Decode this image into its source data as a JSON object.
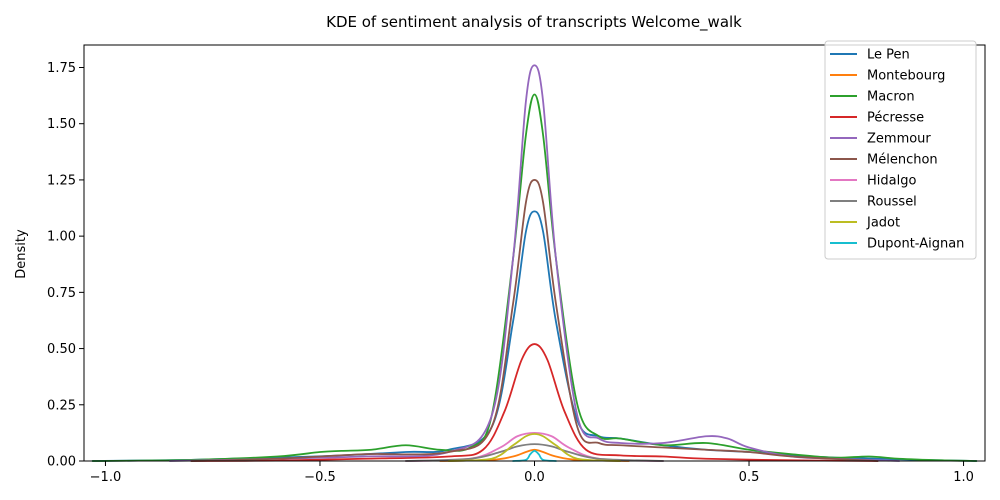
{
  "chart_data": {
    "type": "line",
    "title": "KDE of sentiment analysis of transcripts Welcome_walk",
    "xlabel": "",
    "ylabel": "Density",
    "xlim": [
      -1.05,
      1.05
    ],
    "ylim": [
      0,
      1.85
    ],
    "xticks": [
      -1.0,
      -0.5,
      0.0,
      0.5,
      1.0
    ],
    "xtick_labels": [
      "−1.0",
      "−0.5",
      "0.0",
      "0.5",
      "1.0"
    ],
    "yticks": [
      0,
      0.25,
      0.5,
      0.75,
      1.0,
      1.25,
      1.5,
      1.75
    ],
    "ytick_labels": [
      "0.00",
      "0.25",
      "0.50",
      "0.75",
      "1.00",
      "1.25",
      "1.50",
      "1.75"
    ],
    "grid": false,
    "legend": "top-right",
    "series": [
      {
        "name": "Le Pen",
        "color": "#1f77b4",
        "x": [
          -1.03,
          -0.8,
          -0.6,
          -0.45,
          -0.3,
          -0.2,
          -0.1,
          -0.05,
          -0.02,
          0.0,
          0.02,
          0.05,
          0.1,
          0.15,
          0.2,
          0.3,
          0.4,
          0.5,
          0.6,
          0.7,
          0.8,
          0.9,
          1.03
        ],
        "y": [
          0.0,
          0.005,
          0.015,
          0.025,
          0.04,
          0.05,
          0.15,
          0.62,
          1.02,
          1.11,
          1.02,
          0.62,
          0.18,
          0.11,
          0.1,
          0.07,
          0.05,
          0.04,
          0.025,
          0.015,
          0.01,
          0.005,
          0.0
        ]
      },
      {
        "name": "Montebourg",
        "color": "#ff7f0e",
        "x": [
          -0.22,
          -0.1,
          -0.05,
          -0.02,
          0.0,
          0.02,
          0.05,
          0.1,
          0.22
        ],
        "y": [
          0.0,
          0.005,
          0.02,
          0.04,
          0.05,
          0.04,
          0.02,
          0.005,
          0.0
        ]
      },
      {
        "name": "Macron",
        "color": "#2ca02c",
        "x": [
          -1.03,
          -0.8,
          -0.6,
          -0.5,
          -0.45,
          -0.38,
          -0.3,
          -0.22,
          -0.15,
          -0.1,
          -0.05,
          -0.02,
          0.0,
          0.02,
          0.05,
          0.1,
          0.15,
          0.2,
          0.3,
          0.4,
          0.5,
          0.6,
          0.7,
          0.78,
          0.85,
          0.95,
          1.03
        ],
        "y": [
          0.0,
          0.005,
          0.02,
          0.04,
          0.045,
          0.05,
          0.07,
          0.05,
          0.06,
          0.2,
          0.9,
          1.45,
          1.63,
          1.45,
          0.9,
          0.25,
          0.11,
          0.1,
          0.07,
          0.08,
          0.05,
          0.03,
          0.015,
          0.02,
          0.01,
          0.003,
          0.0
        ]
      },
      {
        "name": "Pécresse",
        "color": "#d62728",
        "x": [
          -0.8,
          -0.6,
          -0.4,
          -0.2,
          -0.12,
          -0.07,
          -0.03,
          0.0,
          0.03,
          0.07,
          0.12,
          0.2,
          0.3,
          0.4,
          0.6,
          0.8
        ],
        "y": [
          0.0,
          0.002,
          0.01,
          0.02,
          0.05,
          0.22,
          0.45,
          0.52,
          0.45,
          0.22,
          0.05,
          0.025,
          0.02,
          0.01,
          0.003,
          0.0
        ]
      },
      {
        "name": "Zemmour",
        "color": "#9467bd",
        "x": [
          -0.85,
          -0.6,
          -0.4,
          -0.2,
          -0.1,
          -0.05,
          -0.02,
          0.0,
          0.02,
          0.05,
          0.1,
          0.15,
          0.2,
          0.3,
          0.4,
          0.45,
          0.5,
          0.6,
          0.7,
          0.85
        ],
        "y": [
          0.0,
          0.01,
          0.02,
          0.04,
          0.2,
          0.9,
          1.6,
          1.76,
          1.6,
          0.9,
          0.2,
          0.1,
          0.08,
          0.08,
          0.11,
          0.1,
          0.06,
          0.02,
          0.01,
          0.0
        ]
      },
      {
        "name": "Mélenchon",
        "color": "#8c564b",
        "x": [
          -0.8,
          -0.6,
          -0.4,
          -0.2,
          -0.1,
          -0.05,
          -0.02,
          0.0,
          0.02,
          0.05,
          0.1,
          0.15,
          0.2,
          0.3,
          0.4,
          0.5,
          0.6,
          0.8
        ],
        "y": [
          0.0,
          0.01,
          0.03,
          0.04,
          0.15,
          0.7,
          1.15,
          1.25,
          1.15,
          0.7,
          0.15,
          0.08,
          0.07,
          0.06,
          0.05,
          0.04,
          0.02,
          0.0
        ]
      },
      {
        "name": "Hidalgo",
        "color": "#e377c2",
        "x": [
          -0.3,
          -0.15,
          -0.08,
          -0.04,
          0.0,
          0.04,
          0.08,
          0.15,
          0.3
        ],
        "y": [
          0.0,
          0.01,
          0.06,
          0.11,
          0.125,
          0.11,
          0.06,
          0.01,
          0.0
        ]
      },
      {
        "name": "Roussel",
        "color": "#7f7f7f",
        "x": [
          -0.3,
          -0.15,
          -0.08,
          -0.04,
          0.0,
          0.04,
          0.08,
          0.15,
          0.3
        ],
        "y": [
          0.0,
          0.01,
          0.04,
          0.065,
          0.075,
          0.065,
          0.04,
          0.01,
          0.0
        ]
      },
      {
        "name": "Jadot",
        "color": "#bcbd22",
        "x": [
          -0.2,
          -0.1,
          -0.05,
          -0.02,
          0.0,
          0.02,
          0.05,
          0.1,
          0.2
        ],
        "y": [
          0.0,
          0.01,
          0.07,
          0.11,
          0.12,
          0.11,
          0.07,
          0.01,
          0.0
        ]
      },
      {
        "name": "Dupont-Aignan",
        "color": "#17becf",
        "x": [
          -0.05,
          -0.02,
          -0.01,
          0.0,
          0.01,
          0.02,
          0.05
        ],
        "y": [
          0.0,
          0.005,
          0.03,
          0.045,
          0.03,
          0.005,
          0.0
        ]
      }
    ]
  }
}
